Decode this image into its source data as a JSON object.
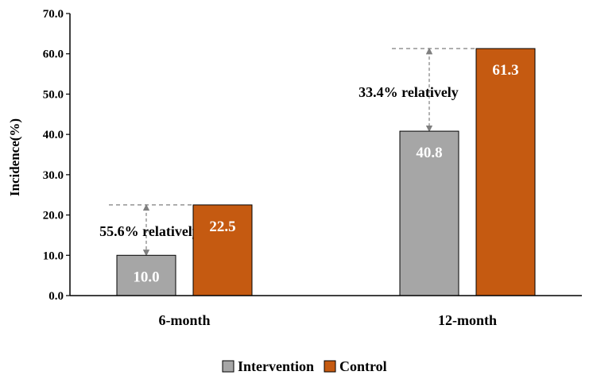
{
  "chart_data": {
    "type": "bar",
    "categories": [
      "6-month",
      "12-month"
    ],
    "series": [
      {
        "name": "Intervention",
        "values": [
          10.0,
          40.8
        ],
        "color": "#a6a6a6"
      },
      {
        "name": "Control",
        "values": [
          22.5,
          61.3
        ],
        "color": "#c55a11"
      }
    ],
    "data_labels": [
      [
        "10.0",
        "40.8"
      ],
      [
        "22.5",
        "61.3"
      ]
    ],
    "ylabel": "Incidence(%)",
    "xlabel": "",
    "ylim": [
      0,
      70
    ],
    "yticks": [
      "0.0",
      "10.0",
      "20.0",
      "30.0",
      "40.0",
      "50.0",
      "60.0",
      "70.0"
    ],
    "grid": false,
    "legend_position": "bottom",
    "annotations": [
      {
        "category": "6-month",
        "text": "55.6% relatively"
      },
      {
        "category": "12-month",
        "text": "33.4% relatively"
      }
    ]
  }
}
